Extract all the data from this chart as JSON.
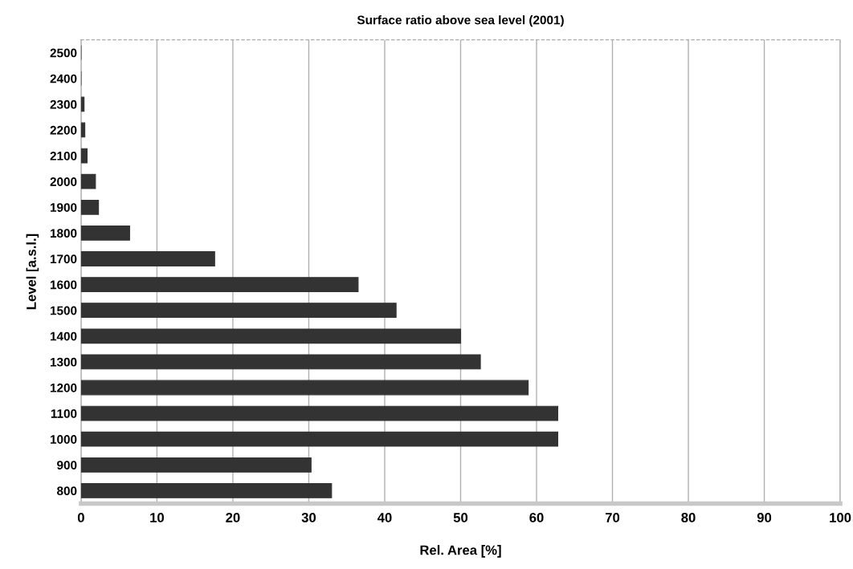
{
  "chart_data": {
    "type": "bar",
    "orientation": "horizontal",
    "title": "Surface ratio above sea level (2001)",
    "xlabel": "Rel. Area [%]",
    "ylabel": "Level [a.s.l.]",
    "categories": [
      "2500",
      "2400",
      "2300",
      "2200",
      "2100",
      "2000",
      "1900",
      "1800",
      "1700",
      "1600",
      "1500",
      "1400",
      "1300",
      "1200",
      "1100",
      "1000",
      "900",
      "800"
    ],
    "values": [
      0,
      0,
      0.4,
      0.5,
      0.8,
      1.9,
      2.3,
      6.4,
      17.6,
      36.5,
      41.5,
      50,
      52.6,
      58.9,
      62.8,
      62.8,
      30.3,
      33
    ],
    "color": "#333333",
    "xlim": [
      0,
      100
    ],
    "xticks": [
      0,
      10,
      20,
      30,
      40,
      50,
      60,
      70,
      80,
      90,
      100
    ],
    "grid": "x"
  }
}
